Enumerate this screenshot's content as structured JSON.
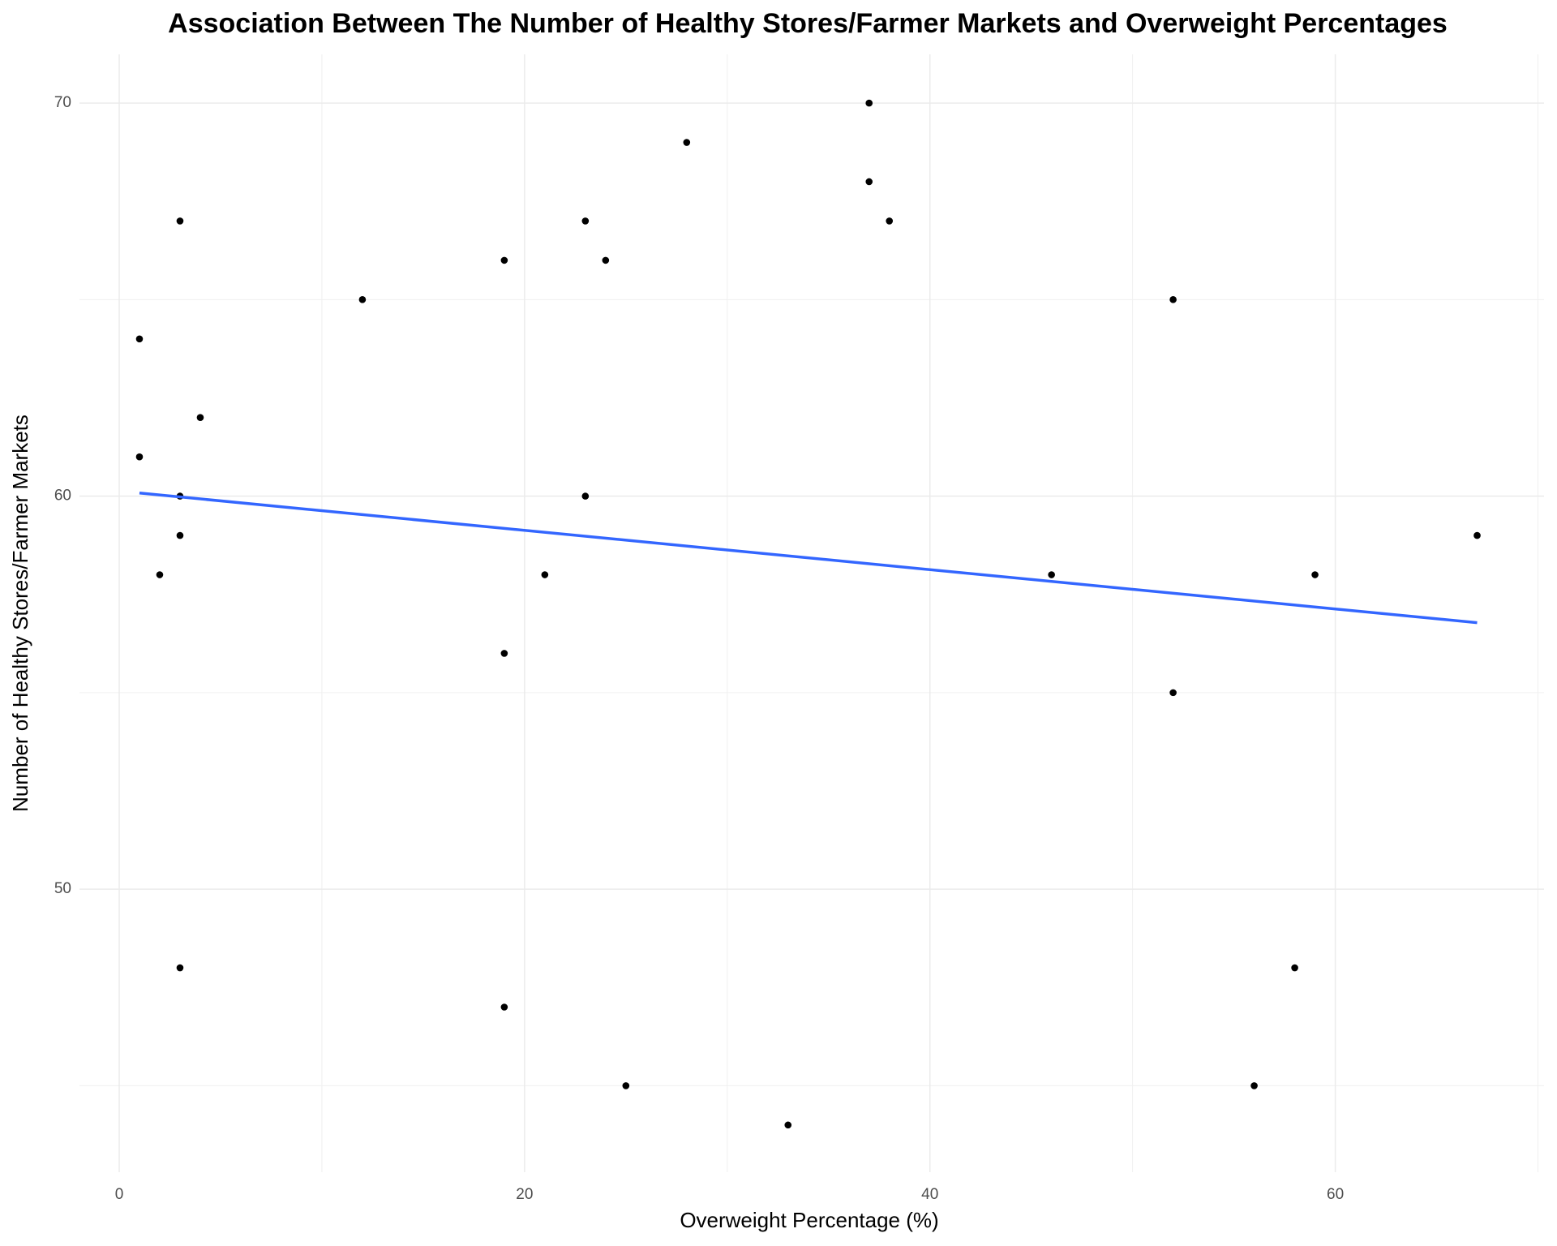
{
  "chart_data": {
    "type": "scatter",
    "title": "Association Between The Number of Healthy Stores/Farmer Markets and Overweight Percentages",
    "x_label": "Overweight Percentage (%)",
    "y_label": "Number of Healthy Stores/Farmer Markets",
    "x": [
      1,
      3,
      1,
      4,
      3,
      3,
      2,
      3,
      12,
      19,
      19,
      19,
      21,
      23,
      23,
      24,
      25,
      28,
      33,
      37,
      37,
      38,
      46,
      52,
      52,
      56,
      58,
      59,
      67
    ],
    "values": [
      64,
      67,
      61,
      62,
      60,
      59,
      58,
      48,
      65,
      66,
      56,
      47,
      58,
      67,
      60,
      66,
      45,
      69,
      44,
      70,
      68,
      67,
      58,
      65,
      55,
      45,
      48,
      58,
      59
    ],
    "color": "#000000",
    "trend": {
      "x": [
        1,
        67
      ],
      "values": [
        60.08,
        56.78
      ],
      "color": "#3366ff"
    },
    "xlim": [
      -1.96,
      70.3
    ],
    "ylim": [
      42.8,
      71.24
    ],
    "xticks": [
      0,
      20,
      40,
      60
    ],
    "yticks": [
      50,
      60,
      70
    ],
    "x_minor_ticks": [
      10,
      30,
      50,
      70
    ],
    "y_minor_ticks": [
      45,
      55,
      65
    ],
    "grid": true
  }
}
